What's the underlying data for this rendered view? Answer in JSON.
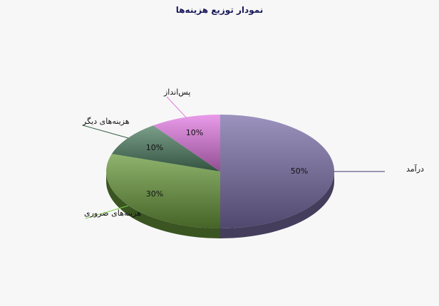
{
  "chart_data": {
    "type": "pie",
    "style": "3d",
    "title": "نمودار توزیع هزینه‌ها",
    "slices": [
      {
        "label": "درآمد",
        "value": 50,
        "value_label": "50%",
        "color": "#7b6fa8",
        "line_color": "#3d356e"
      },
      {
        "label": "هزینه‌های ضروری",
        "value": 30,
        "value_label": "30%",
        "color": "#6a9a3c",
        "line_color": "#7ccc44"
      },
      {
        "label": "هزینه‌های دیگر",
        "value": 10,
        "value_label": "10%",
        "color": "#4f7f63",
        "line_color": "#2f5f43"
      },
      {
        "label": "پس‌انداز",
        "value": 10,
        "value_label": "10%",
        "color": "#e27ae2",
        "line_color": "#e27ae2"
      }
    ],
    "legend": "none"
  }
}
